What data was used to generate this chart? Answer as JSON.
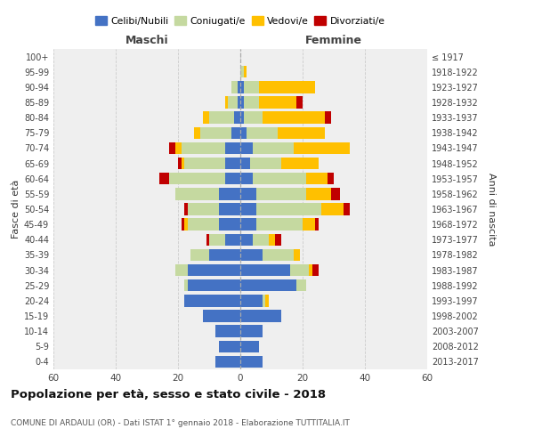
{
  "age_groups": [
    "0-4",
    "5-9",
    "10-14",
    "15-19",
    "20-24",
    "25-29",
    "30-34",
    "35-39",
    "40-44",
    "45-49",
    "50-54",
    "55-59",
    "60-64",
    "65-69",
    "70-74",
    "75-79",
    "80-84",
    "85-89",
    "90-94",
    "95-99",
    "100+"
  ],
  "birth_years": [
    "2013-2017",
    "2008-2012",
    "2003-2007",
    "1998-2002",
    "1993-1997",
    "1988-1992",
    "1983-1987",
    "1978-1982",
    "1973-1977",
    "1968-1972",
    "1963-1967",
    "1958-1962",
    "1953-1957",
    "1948-1952",
    "1943-1947",
    "1938-1942",
    "1933-1937",
    "1928-1932",
    "1923-1927",
    "1918-1922",
    "≤ 1917"
  ],
  "male": {
    "celibi": [
      8,
      7,
      8,
      12,
      18,
      17,
      17,
      10,
      5,
      7,
      7,
      7,
      5,
      5,
      5,
      3,
      2,
      1,
      1,
      0,
      0
    ],
    "coniugati": [
      0,
      0,
      0,
      0,
      0,
      1,
      4,
      6,
      5,
      10,
      10,
      14,
      18,
      13,
      14,
      10,
      8,
      3,
      2,
      0,
      0
    ],
    "vedovi": [
      0,
      0,
      0,
      0,
      0,
      0,
      0,
      0,
      0,
      1,
      0,
      0,
      0,
      1,
      2,
      2,
      2,
      1,
      0,
      0,
      0
    ],
    "divorziati": [
      0,
      0,
      0,
      0,
      0,
      0,
      0,
      0,
      1,
      1,
      1,
      0,
      3,
      1,
      2,
      0,
      0,
      0,
      0,
      0,
      0
    ]
  },
  "female": {
    "nubili": [
      7,
      6,
      7,
      13,
      7,
      18,
      16,
      7,
      4,
      5,
      5,
      5,
      4,
      3,
      4,
      2,
      1,
      1,
      1,
      0,
      0
    ],
    "coniugate": [
      0,
      0,
      0,
      0,
      1,
      3,
      6,
      10,
      5,
      15,
      21,
      16,
      17,
      10,
      13,
      10,
      6,
      5,
      5,
      1,
      0
    ],
    "vedove": [
      0,
      0,
      0,
      0,
      1,
      0,
      1,
      2,
      2,
      4,
      7,
      8,
      7,
      12,
      18,
      15,
      20,
      12,
      18,
      1,
      0
    ],
    "divorziate": [
      0,
      0,
      0,
      0,
      0,
      0,
      2,
      0,
      2,
      1,
      2,
      3,
      2,
      0,
      0,
      0,
      2,
      2,
      0,
      0,
      0
    ]
  },
  "colors": {
    "celibi": "#4472c4",
    "coniugati": "#c5d9a0",
    "vedovi": "#ffc000",
    "divorziati": "#c00000"
  },
  "title": "Popolazione per età, sesso e stato civile - 2018",
  "subtitle": "COMUNE DI ARDAULI (OR) - Dati ISTAT 1° gennaio 2018 - Elaborazione TUTTITALIA.IT",
  "xlabel_left": "Maschi",
  "xlabel_right": "Femmine",
  "ylabel": "Fasce di età",
  "ylabel_right": "Anni di nascita",
  "xlim": 60,
  "legend_labels": [
    "Celibi/Nubili",
    "Coniugati/e",
    "Vedovi/e",
    "Divorziati/e"
  ]
}
